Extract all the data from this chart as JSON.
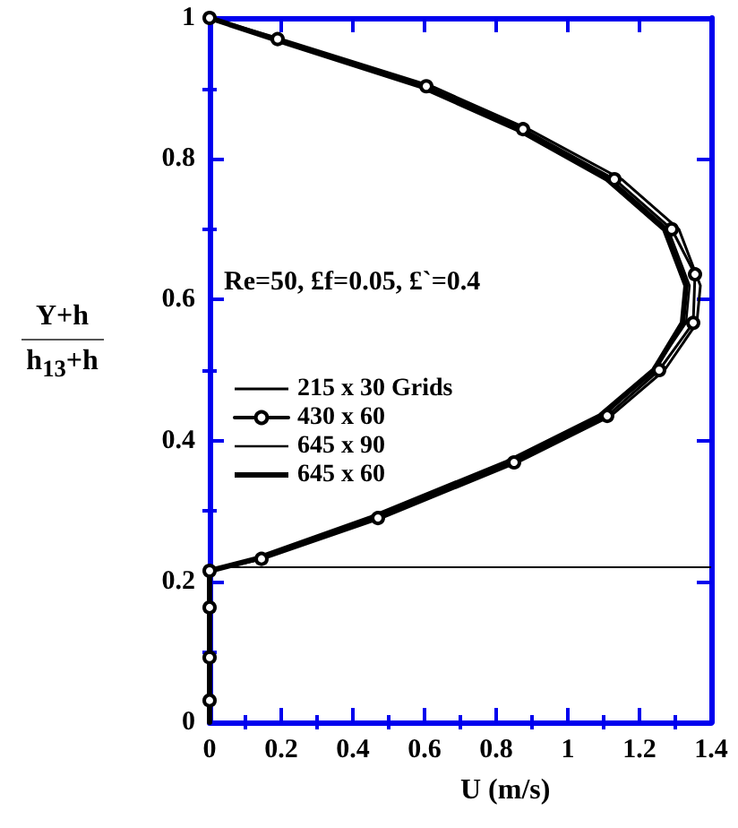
{
  "chart_data": {
    "type": "line",
    "xlabel": "U (m/s)",
    "ylabel": "Y+h\nh$_{13}$+h",
    "annotations": [
      "Re=50, £f=0.05, £`=0.4"
    ],
    "xlim": [
      0,
      1.4
    ],
    "xticks": [
      0,
      0.2,
      0.4,
      0.6,
      0.8,
      1,
      1.2,
      1.4
    ],
    "ylim": [
      0,
      1
    ],
    "yticks": [
      0,
      0.2,
      0.4,
      0.6,
      0.8,
      1
    ],
    "grid": false,
    "legend": "left",
    "ref_lines": [
      {
        "axis": "y",
        "value": 0.22,
        "label": null,
        "color": "#000000"
      }
    ],
    "series": [
      {
        "name": "215 x 30 Grids",
        "color": "#000000",
        "marker": "none",
        "x": [
          0,
          0,
          0.15,
          0.48,
          0.86,
          1.12,
          1.27,
          1.36,
          1.37,
          1.31,
          1.15,
          0.89,
          0.62,
          0.2,
          0
        ],
        "values": [
          0,
          0.215,
          0.232,
          0.29,
          0.369,
          0.435,
          0.5,
          0.567,
          0.62,
          0.7,
          0.771,
          0.842,
          0.903,
          0.97,
          1
        ]
      },
      {
        "name": "430 x 60",
        "color": "#000000",
        "marker": "circle",
        "x": [
          0,
          0,
          0,
          0,
          0.145,
          0.47,
          0.85,
          1.11,
          1.255,
          1.35,
          1.355,
          1.29,
          1.13,
          0.875,
          0.605,
          0.19,
          0
        ],
        "values": [
          0.031,
          0.092,
          0.163,
          0.215,
          0.232,
          0.29,
          0.369,
          0.435,
          0.5,
          0.567,
          0.636,
          0.7,
          0.771,
          0.842,
          0.903,
          0.97,
          1
        ]
      },
      {
        "name": "645 x 90",
        "color": "#000000",
        "marker": "none",
        "x": [
          0,
          0,
          0.14,
          0.46,
          0.84,
          1.1,
          1.24,
          1.33,
          1.34,
          1.28,
          1.12,
          0.87,
          0.6,
          0.19,
          0
        ],
        "values": [
          0,
          0.215,
          0.232,
          0.29,
          0.369,
          0.435,
          0.5,
          0.567,
          0.62,
          0.7,
          0.771,
          0.842,
          0.903,
          0.97,
          1
        ]
      },
      {
        "name": "645 x 60",
        "color": "#000000",
        "marker": "none",
        "x": [
          0,
          0,
          0.13,
          0.45,
          0.83,
          1.09,
          1.24,
          1.32,
          1.33,
          1.27,
          1.11,
          0.86,
          0.59,
          0.18,
          0
        ],
        "values": [
          0,
          0.215,
          0.232,
          0.29,
          0.369,
          0.435,
          0.5,
          0.567,
          0.62,
          0.7,
          0.771,
          0.842,
          0.903,
          0.97,
          1
        ]
      }
    ]
  }
}
